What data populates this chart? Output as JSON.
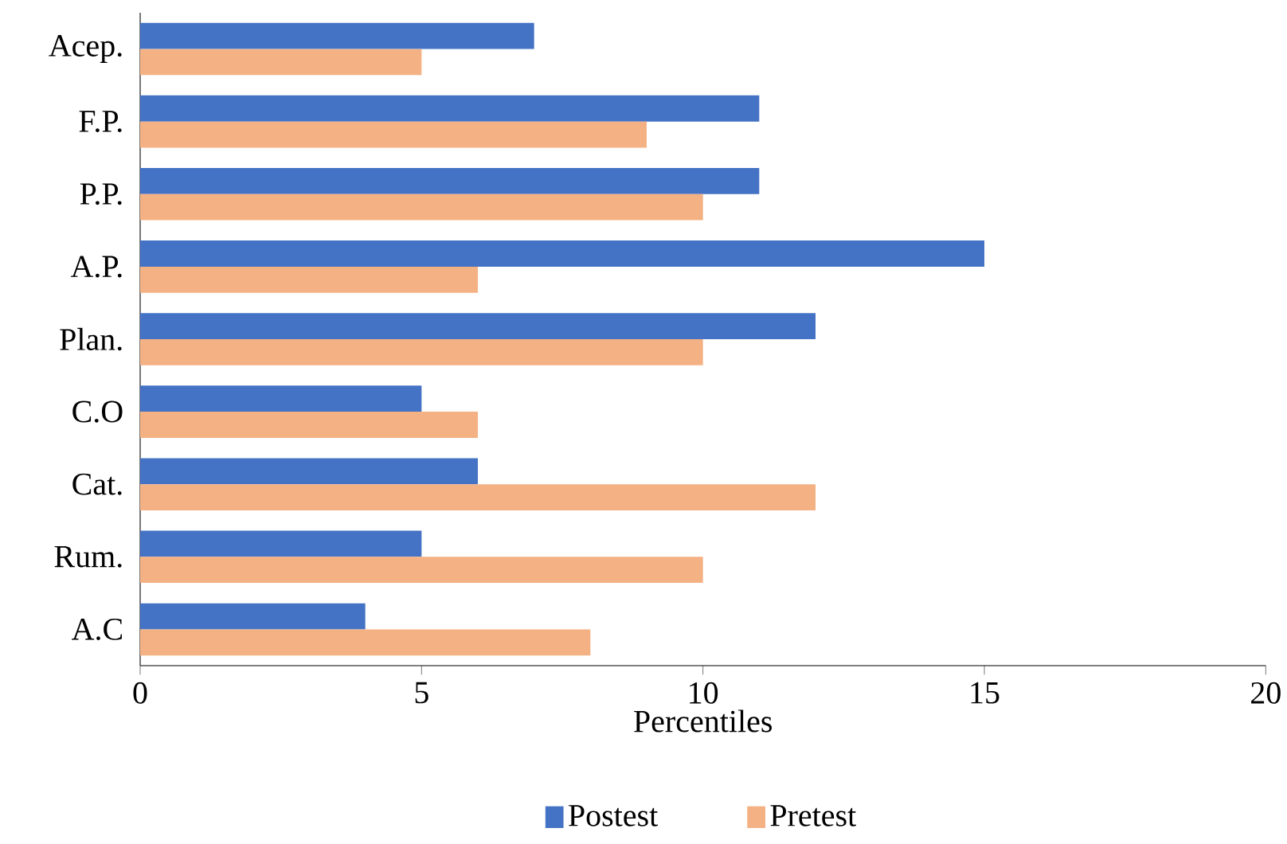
{
  "chart_data": {
    "type": "bar",
    "orientation": "horizontal",
    "xlabel": "Percentiles",
    "categories": [
      "Acep.",
      "F.P.",
      "P.P.",
      "A.P.",
      "Plan.",
      "C.O",
      "Cat.",
      "Rum.",
      "A.C"
    ],
    "series": [
      {
        "name": "Postest",
        "color": "#4472c4",
        "values": [
          7,
          11,
          11,
          15,
          12,
          5,
          6,
          5,
          4
        ]
      },
      {
        "name": "Pretest",
        "color": "#f4b183",
        "values": [
          5,
          9,
          10,
          6,
          10,
          6,
          12,
          10,
          8
        ]
      }
    ],
    "xlim": [
      0,
      20
    ],
    "xticks": [
      0,
      5,
      10,
      15,
      20
    ],
    "grid": false,
    "legend": "bottom"
  }
}
